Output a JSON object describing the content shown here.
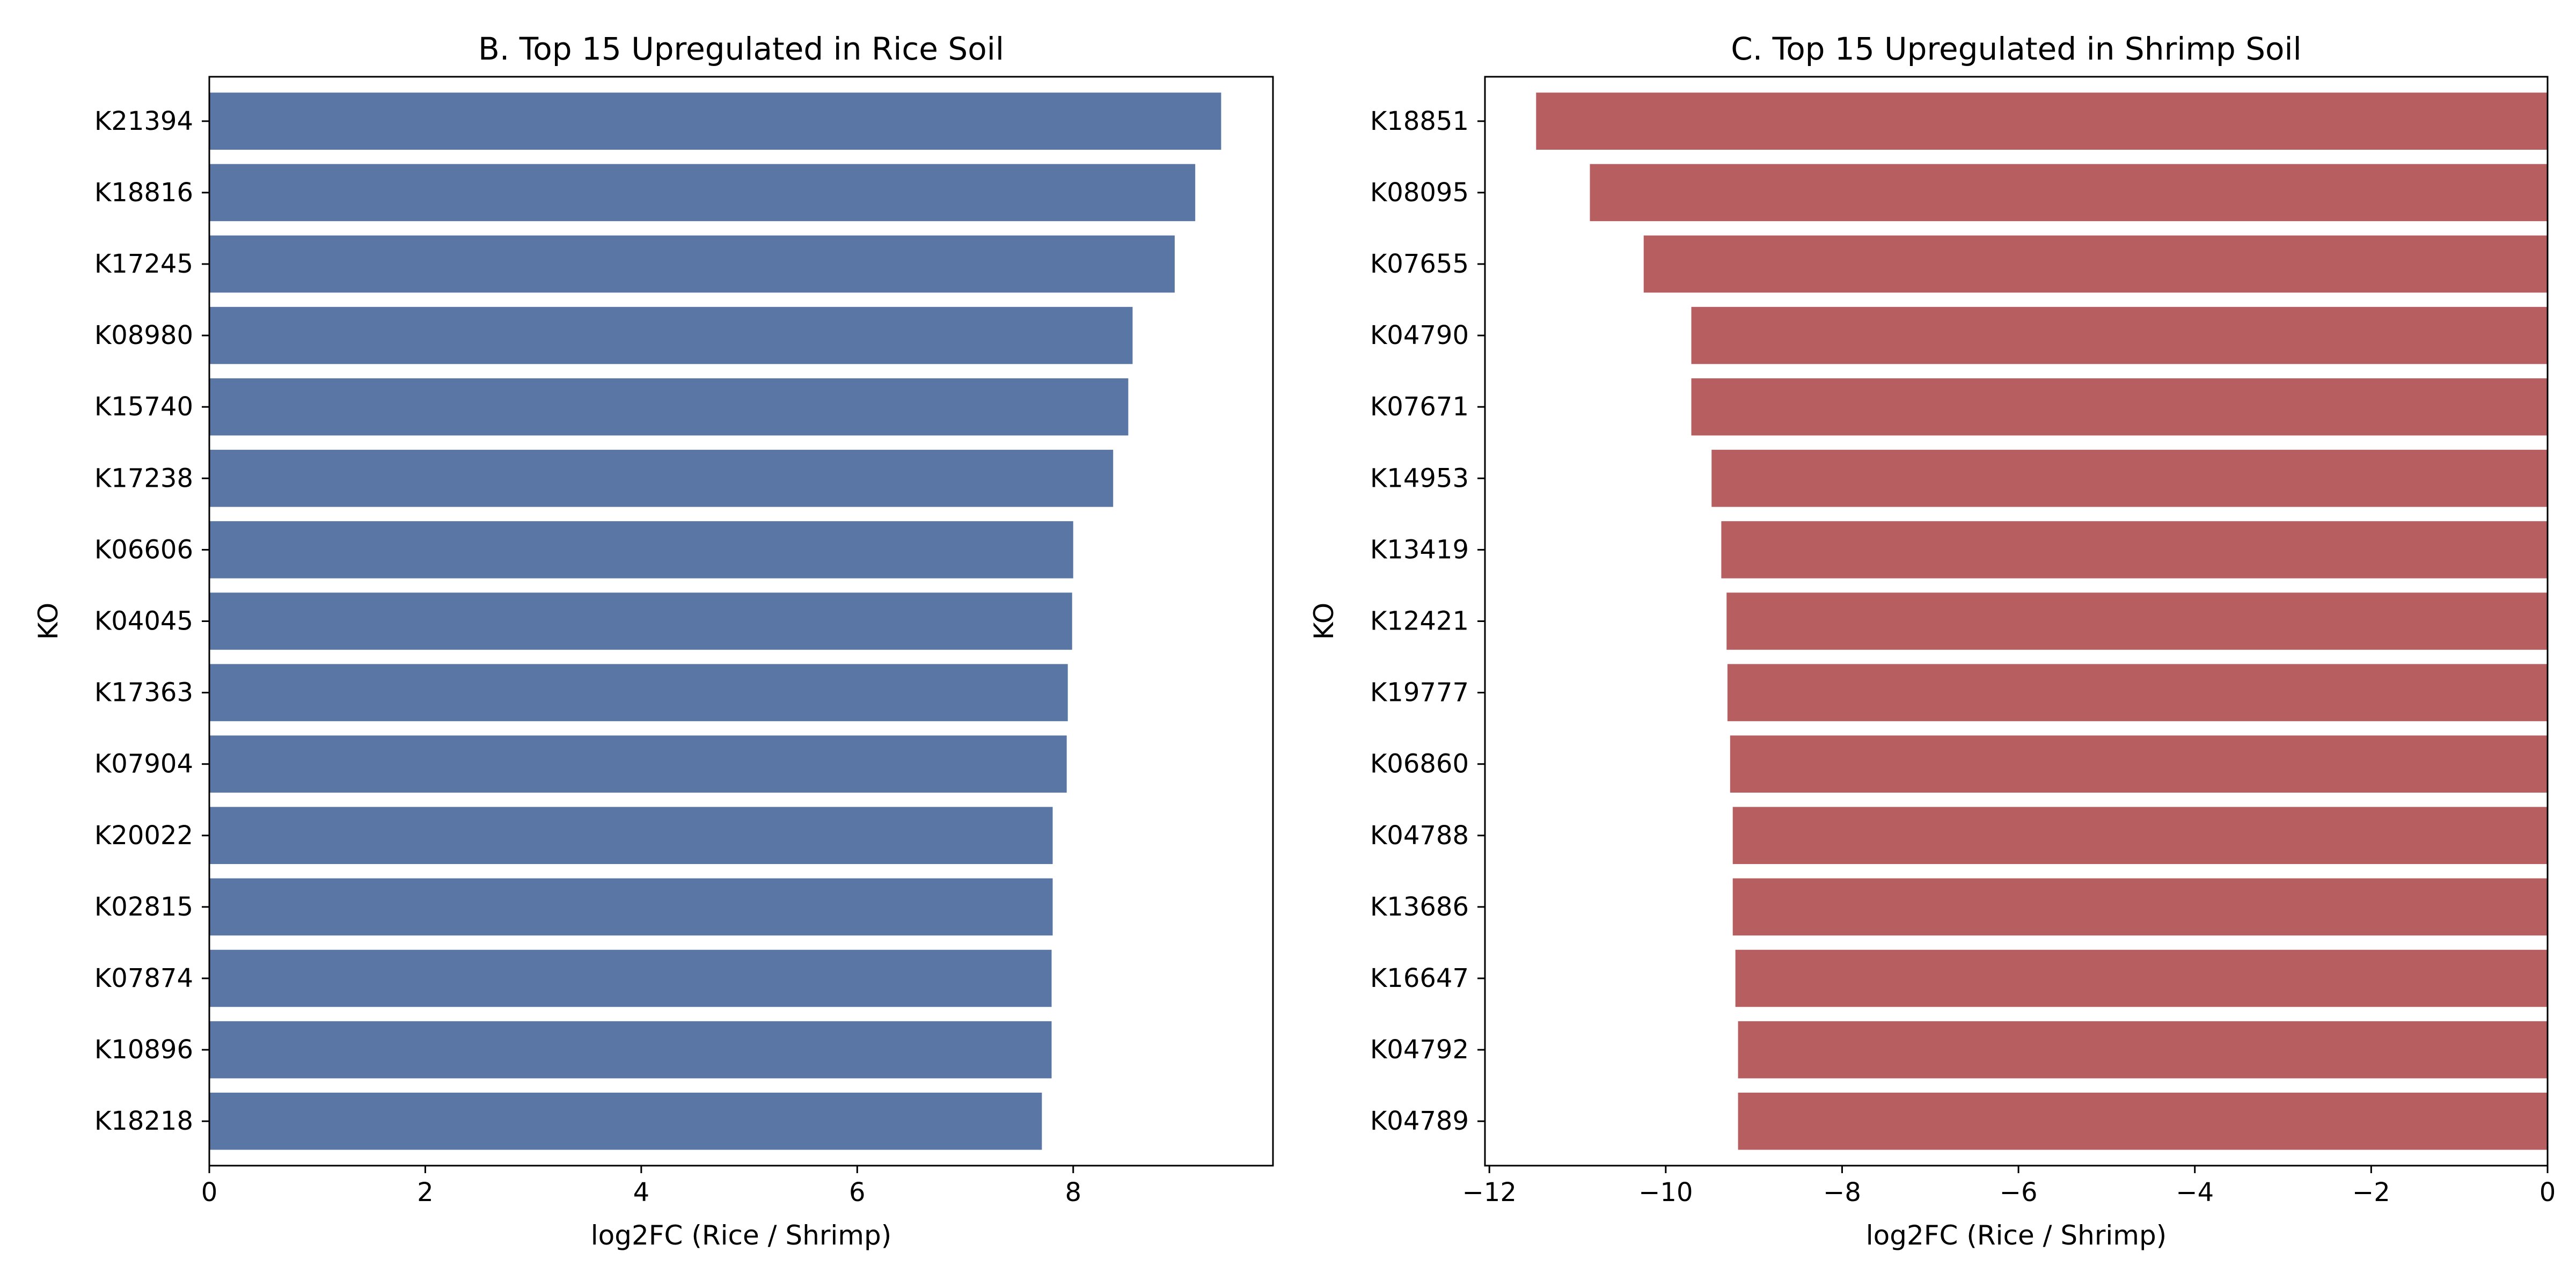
{
  "chart_data": [
    {
      "type": "bar",
      "orientation": "horizontal",
      "title": "B. Top 15 Upregulated in Rice Soil",
      "xlabel": "log2FC (Rice / Shrimp)",
      "ylabel": "KO",
      "xlim": [
        0,
        9.85
      ],
      "xticks": [
        0,
        2,
        4,
        6,
        8
      ],
      "color": "#5976a5",
      "categories": [
        "K21394",
        "K18816",
        "K17245",
        "K08980",
        "K15740",
        "K17238",
        "K06606",
        "K04045",
        "K17363",
        "K07904",
        "K20022",
        "K02815",
        "K07874",
        "K10896",
        "K18218"
      ],
      "values": [
        9.37,
        9.13,
        8.94,
        8.55,
        8.51,
        8.37,
        8.0,
        7.99,
        7.95,
        7.94,
        7.81,
        7.81,
        7.8,
        7.8,
        7.71
      ],
      "grid": false,
      "legend": "none"
    },
    {
      "type": "bar",
      "orientation": "horizontal",
      "title": "C. Top 15 Upregulated in Shrimp Soil",
      "xlabel": "log2FC (Rice / Shrimp)",
      "ylabel": "KO",
      "xlim": [
        -12.05,
        0
      ],
      "xticks": [
        -12,
        -10,
        -8,
        -6,
        -4,
        -2,
        0
      ],
      "color": "#b75e61",
      "categories": [
        "K18851",
        "K08095",
        "K07655",
        "K04790",
        "K07671",
        "K14953",
        "K13419",
        "K12421",
        "K19777",
        "K06860",
        "K04788",
        "K13686",
        "K16647",
        "K04792",
        "K04789"
      ],
      "values": [
        -11.47,
        -10.86,
        -10.25,
        -9.71,
        -9.71,
        -9.48,
        -9.37,
        -9.31,
        -9.3,
        -9.27,
        -9.24,
        -9.24,
        -9.21,
        -9.18,
        -9.18
      ],
      "grid": false,
      "legend": "none"
    }
  ]
}
